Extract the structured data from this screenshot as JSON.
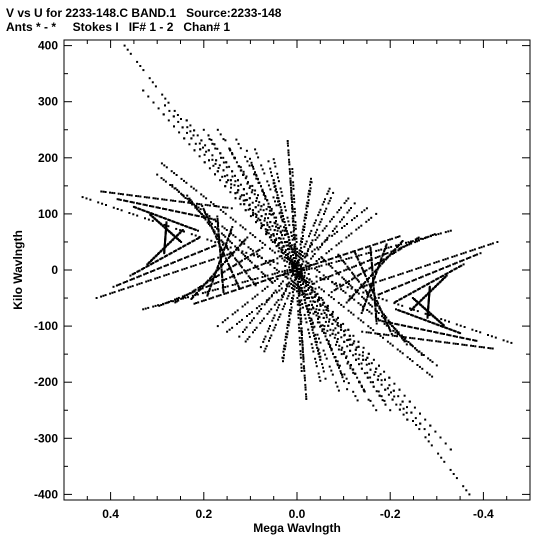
{
  "chart_data": {
    "type": "scatter",
    "title": "V vs U for 2233-148.C BAND.1   Source:2233-148",
    "subtitle": "Ants * - *     Stokes I   IF# 1 - 2   Chan# 1",
    "xlabel": "Mega Wavlngth",
    "ylabel": "Kilo Wavlngth",
    "xlim": [
      0.5,
      -0.5
    ],
    "ylim": [
      -410,
      410
    ],
    "xticks": [
      0.4,
      0.2,
      0,
      -0.2,
      -0.4
    ],
    "xtick_labels": [
      "0.4",
      "0.2",
      "0.0",
      "-0.2",
      "-0.4"
    ],
    "yticks": [
      400,
      300,
      200,
      100,
      0,
      -100,
      -200,
      -300,
      -400
    ],
    "ytick_labels": [
      "400",
      "300",
      "200",
      "100",
      "0",
      "-100",
      "-200",
      "-300",
      "-400"
    ],
    "grid": false,
    "marker_color": "#000000",
    "tracks": {
      "fan_a": {
        "n": 10,
        "x0": [
          -0.33,
          -0.02
        ],
        "y0": [
          70,
          15
        ],
        "x1": [
          -0.01,
          -0.3
        ],
        "y1": [
          -2,
          -170
        ]
      },
      "fan_b": {
        "n": 9,
        "x0": [
          0.42,
          0.14
        ],
        "y0": [
          140,
          30
        ],
        "x1": [
          0.14,
          0.43
        ],
        "y1": [
          110,
          -50
        ]
      },
      "fan_c": {
        "n": 9,
        "x0": [
          0.17,
          -0.15
        ],
        "y0": [
          250,
          110
        ],
        "x1": [
          -0.2,
          0.17
        ],
        "y1": [
          -250,
          -100
        ]
      },
      "fan_d": {
        "n": 7,
        "x0": [
          0.33,
          0.05
        ],
        "y0": [
          320,
          160
        ],
        "x1": [
          -0.33,
          -0.05
        ],
        "y1": [
          -320,
          -160
        ]
      },
      "spine_1": {
        "x0": 0.37,
        "y0": 400,
        "x1": -0.37,
        "y1": -400
      },
      "spine_2": {
        "x0": 0.46,
        "y0": 130,
        "x1": -0.46,
        "y1": -130
      },
      "spine_3": {
        "x0": 0.22,
        "y0": -60,
        "x1": -0.22,
        "y1": 60
      },
      "spine_4": {
        "x0": 0.02,
        "y0": 230,
        "x1": -0.02,
        "y1": -230
      },
      "spine_5": {
        "x0": 0.29,
        "y0": 190,
        "x1": -0.29,
        "y1": -190
      }
    }
  }
}
